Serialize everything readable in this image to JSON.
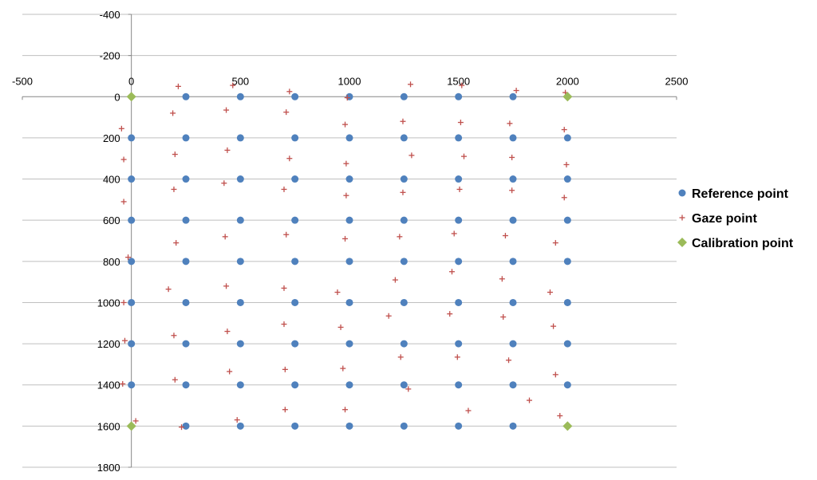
{
  "chart_data": {
    "type": "scatter",
    "title": "",
    "xlabel": "",
    "ylabel": "",
    "xlim": [
      -500,
      2500
    ],
    "ylim": [
      -400,
      1800
    ],
    "y_reversed": true,
    "x_ticks": [
      -500,
      0,
      500,
      1000,
      1500,
      2000,
      2500
    ],
    "y_ticks": [
      -400,
      -200,
      0,
      200,
      400,
      600,
      800,
      1000,
      1200,
      1400,
      1600,
      1800
    ],
    "gridlines": "horizontal",
    "legend_position": "right",
    "series": [
      {
        "name": "Reference point",
        "marker": "circle",
        "color": "#4F81BD",
        "points": [
          [
            250,
            0
          ],
          [
            500,
            0
          ],
          [
            750,
            0
          ],
          [
            1000,
            0
          ],
          [
            1250,
            0
          ],
          [
            1500,
            0
          ],
          [
            1750,
            0
          ],
          [
            0,
            200
          ],
          [
            250,
            200
          ],
          [
            500,
            200
          ],
          [
            750,
            200
          ],
          [
            1000,
            200
          ],
          [
            1250,
            200
          ],
          [
            1500,
            200
          ],
          [
            1750,
            200
          ],
          [
            2000,
            200
          ],
          [
            0,
            400
          ],
          [
            250,
            400
          ],
          [
            500,
            400
          ],
          [
            750,
            400
          ],
          [
            1000,
            400
          ],
          [
            1250,
            400
          ],
          [
            1500,
            400
          ],
          [
            1750,
            400
          ],
          [
            2000,
            400
          ],
          [
            0,
            600
          ],
          [
            250,
            600
          ],
          [
            500,
            600
          ],
          [
            750,
            600
          ],
          [
            1000,
            600
          ],
          [
            1250,
            600
          ],
          [
            1500,
            600
          ],
          [
            1750,
            600
          ],
          [
            2000,
            600
          ],
          [
            0,
            800
          ],
          [
            250,
            800
          ],
          [
            500,
            800
          ],
          [
            750,
            800
          ],
          [
            1000,
            800
          ],
          [
            1250,
            800
          ],
          [
            1500,
            800
          ],
          [
            1750,
            800
          ],
          [
            2000,
            800
          ],
          [
            0,
            1000
          ],
          [
            250,
            1000
          ],
          [
            500,
            1000
          ],
          [
            750,
            1000
          ],
          [
            1000,
            1000
          ],
          [
            1250,
            1000
          ],
          [
            1500,
            1000
          ],
          [
            1750,
            1000
          ],
          [
            2000,
            1000
          ],
          [
            0,
            1200
          ],
          [
            250,
            1200
          ],
          [
            500,
            1200
          ],
          [
            750,
            1200
          ],
          [
            1000,
            1200
          ],
          [
            1250,
            1200
          ],
          [
            1500,
            1200
          ],
          [
            1750,
            1200
          ],
          [
            2000,
            1200
          ],
          [
            0,
            1400
          ],
          [
            250,
            1400
          ],
          [
            500,
            1400
          ],
          [
            750,
            1400
          ],
          [
            1000,
            1400
          ],
          [
            1250,
            1400
          ],
          [
            1500,
            1400
          ],
          [
            1750,
            1400
          ],
          [
            2000,
            1400
          ],
          [
            250,
            1600
          ],
          [
            500,
            1600
          ],
          [
            750,
            1600
          ],
          [
            1000,
            1600
          ],
          [
            1250,
            1600
          ],
          [
            1500,
            1600
          ],
          [
            1750,
            1600
          ]
        ]
      },
      {
        "name": "Gaze point",
        "marker": "plus",
        "color": "#C0504D",
        "points": [
          [
            215,
            -50
          ],
          [
            465,
            -55
          ],
          [
            725,
            -25
          ],
          [
            990,
            5
          ],
          [
            1280,
            -60
          ],
          [
            1515,
            -55
          ],
          [
            1765,
            -30
          ],
          [
            1990,
            -20
          ],
          [
            -45,
            155
          ],
          [
            190,
            80
          ],
          [
            435,
            65
          ],
          [
            710,
            75
          ],
          [
            980,
            135
          ],
          [
            1245,
            120
          ],
          [
            1510,
            125
          ],
          [
            1735,
            130
          ],
          [
            1985,
            160
          ],
          [
            -35,
            305
          ],
          [
            200,
            280
          ],
          [
            440,
            260
          ],
          [
            725,
            300
          ],
          [
            985,
            325
          ],
          [
            1285,
            285
          ],
          [
            1525,
            290
          ],
          [
            1745,
            295
          ],
          [
            1995,
            330
          ],
          [
            -35,
            510
          ],
          [
            195,
            450
          ],
          [
            425,
            420
          ],
          [
            700,
            450
          ],
          [
            985,
            480
          ],
          [
            1245,
            465
          ],
          [
            1505,
            450
          ],
          [
            1745,
            455
          ],
          [
            1985,
            490
          ],
          [
            205,
            710
          ],
          [
            430,
            680
          ],
          [
            710,
            670
          ],
          [
            980,
            690
          ],
          [
            1230,
            680
          ],
          [
            1480,
            665
          ],
          [
            1715,
            675
          ],
          [
            1945,
            710
          ],
          [
            -15,
            780
          ],
          [
            170,
            935
          ],
          [
            435,
            920
          ],
          [
            700,
            930
          ],
          [
            945,
            950
          ],
          [
            1210,
            890
          ],
          [
            1470,
            850
          ],
          [
            1700,
            885
          ],
          [
            1920,
            950
          ],
          [
            -35,
            1000
          ],
          [
            195,
            1160
          ],
          [
            440,
            1140
          ],
          [
            700,
            1105
          ],
          [
            960,
            1120
          ],
          [
            1180,
            1065
          ],
          [
            1460,
            1055
          ],
          [
            1705,
            1070
          ],
          [
            1935,
            1115
          ],
          [
            -30,
            1185
          ],
          [
            200,
            1375
          ],
          [
            450,
            1335
          ],
          [
            705,
            1325
          ],
          [
            970,
            1320
          ],
          [
            1235,
            1265
          ],
          [
            1495,
            1265
          ],
          [
            1730,
            1280
          ],
          [
            1945,
            1350
          ],
          [
            -40,
            1395
          ],
          [
            20,
            1575
          ],
          [
            230,
            1605
          ],
          [
            485,
            1570
          ],
          [
            705,
            1520
          ],
          [
            980,
            1520
          ],
          [
            1270,
            1420
          ],
          [
            1545,
            1525
          ],
          [
            1825,
            1475
          ],
          [
            1965,
            1550
          ]
        ]
      },
      {
        "name": "Calibration point",
        "marker": "diamond",
        "color": "#9BBB59",
        "points": [
          [
            0,
            0
          ],
          [
            2000,
            0
          ],
          [
            0,
            1600
          ],
          [
            2000,
            1600
          ]
        ]
      }
    ]
  }
}
